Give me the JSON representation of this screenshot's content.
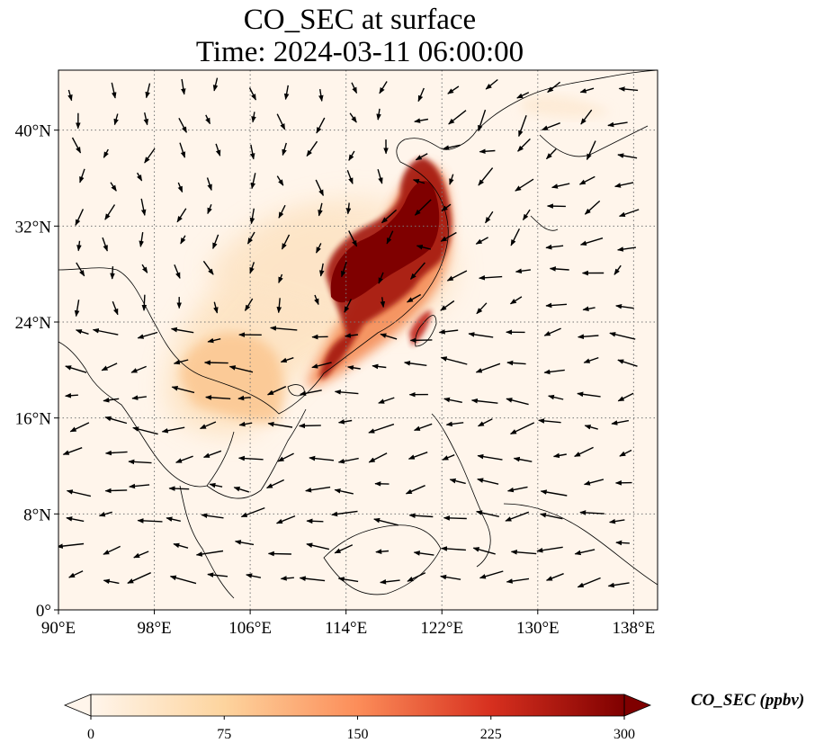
{
  "title": {
    "line1": "CO_SEC at surface",
    "line2": "Time: 2024-03-11 06:00:00"
  },
  "map": {
    "extent": {
      "lon_min": 90,
      "lon_max": 140,
      "lat_min": 0,
      "lat_max": 45
    },
    "lon_ticks": [
      {
        "value": 90,
        "label": "90°E"
      },
      {
        "value": 98,
        "label": "98°E"
      },
      {
        "value": 106,
        "label": "106°E"
      },
      {
        "value": 114,
        "label": "114°E"
      },
      {
        "value": 122,
        "label": "122°E"
      },
      {
        "value": 130,
        "label": "130°E"
      },
      {
        "value": 138,
        "label": "138°E"
      }
    ],
    "lat_ticks": [
      {
        "value": 0,
        "label": "0°"
      },
      {
        "value": 8,
        "label": "8°N"
      },
      {
        "value": 16,
        "label": "16°N"
      },
      {
        "value": 24,
        "label": "24°N"
      },
      {
        "value": 32,
        "label": "32°N"
      },
      {
        "value": 40,
        "label": "40°N"
      }
    ],
    "gridlines": true,
    "background_color": "#fff5eb",
    "coastline_color": "#000000"
  },
  "colorbar": {
    "label": "CO_SEC (ppbv)",
    "colormap": "OrRd",
    "colors": [
      "#fff5eb",
      "#fdd49e",
      "#fc8d59",
      "#d7301f",
      "#7f0000"
    ],
    "extend": "both",
    "min": 0,
    "max": 300,
    "ticks": [
      {
        "value": 0,
        "label": "0"
      },
      {
        "value": 75,
        "label": "75"
      },
      {
        "value": 150,
        "label": "150"
      },
      {
        "value": 225,
        "label": "225"
      },
      {
        "value": 300,
        "label": "300"
      }
    ]
  }
}
